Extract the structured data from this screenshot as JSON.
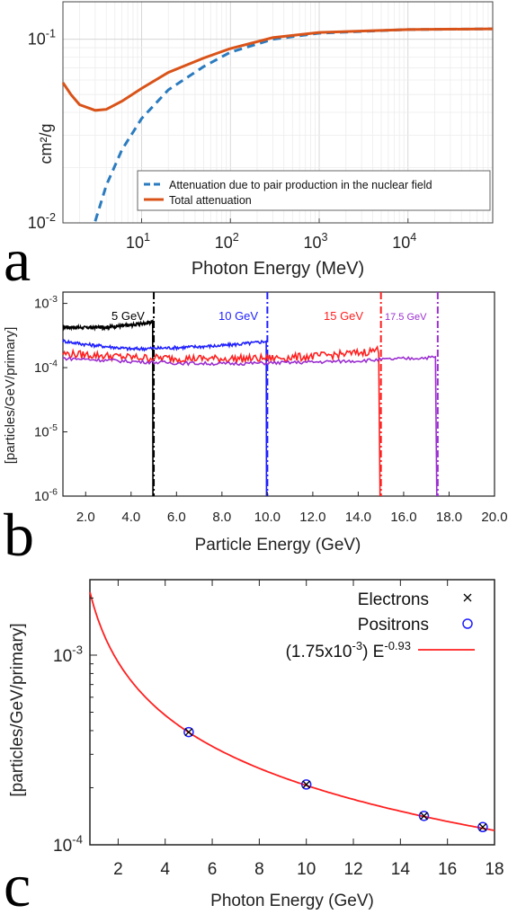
{
  "chart_data": [
    {
      "panel": "a",
      "type": "line",
      "xlabel": "Photon Energy (MeV)",
      "ylabel": "cm²/g",
      "xscale": "log",
      "yscale": "log",
      "xlim": [
        1.3,
        90000
      ],
      "ylim": [
        0.01,
        0.16
      ],
      "xticks": [
        {
          "v": 10,
          "base": "10",
          "exp": "1"
        },
        {
          "v": 100,
          "base": "10",
          "exp": "2"
        },
        {
          "v": 1000,
          "base": "10",
          "exp": "3"
        },
        {
          "v": 10000,
          "base": "10",
          "exp": "4"
        }
      ],
      "yticks": [
        {
          "v": 0.01,
          "base": "10",
          "exp": "-2"
        },
        {
          "v": 0.1,
          "base": "10",
          "exp": "-1"
        }
      ],
      "grid": true,
      "legend_position": "bottom-right",
      "series": [
        {
          "name": "Attenuation due to pair production in the nuclear field",
          "color": "#2b7bbf",
          "style": "dashed",
          "x": [
            3,
            4,
            6,
            10,
            20,
            50,
            100,
            300,
            1000,
            10000,
            90000
          ],
          "y": [
            0.0102,
            0.016,
            0.025,
            0.037,
            0.053,
            0.071,
            0.085,
            0.1,
            0.108,
            0.113,
            0.114
          ]
        },
        {
          "name": "Total attenuation",
          "color": "#d95319",
          "style": "solid",
          "x": [
            1.3,
            1.6,
            2,
            3,
            4,
            6,
            10,
            20,
            50,
            100,
            300,
            1000,
            10000,
            90000
          ],
          "y": [
            0.058,
            0.05,
            0.044,
            0.041,
            0.0415,
            0.046,
            0.054,
            0.066,
            0.079,
            0.089,
            0.102,
            0.109,
            0.113,
            0.114
          ]
        }
      ]
    },
    {
      "panel": "b",
      "type": "line",
      "xlabel": "Particle Energy (GeV)",
      "ylabel": "[particles/GeV/primary]",
      "xscale": "linear",
      "yscale": "log",
      "xlim": [
        1,
        20
      ],
      "ylim": [
        1e-06,
        0.0015
      ],
      "xticks": [
        "2.0",
        "4.0",
        "6.0",
        "8.0",
        "10.0",
        "12.0",
        "14.0",
        "16.0",
        "18.0",
        "20.0"
      ],
      "yticks": [
        {
          "v": 1e-06,
          "base": "10",
          "exp": "-6"
        },
        {
          "v": 1e-05,
          "base": "10",
          "exp": "-5"
        },
        {
          "v": 0.0001,
          "base": "10",
          "exp": "-4"
        },
        {
          "v": 0.001,
          "base": "10",
          "exp": "-3"
        }
      ],
      "series": [
        {
          "name": "5 GeV",
          "color": "#000000",
          "cutoff": 5,
          "x": [
            1,
            2,
            3,
            4,
            4.7,
            4.95
          ],
          "y": [
            0.00043,
            0.00042,
            0.00043,
            0.00046,
            0.0005,
            0.00052
          ]
        },
        {
          "name": "10 GeV",
          "color": "#1f1fff",
          "cutoff": 10,
          "x": [
            1,
            2,
            4,
            6,
            8,
            9.5,
            9.95
          ],
          "y": [
            0.00026,
            0.00023,
            0.000195,
            0.000205,
            0.00022,
            0.000245,
            0.00026
          ]
        },
        {
          "name": "15 GeV",
          "color": "#ff1f1f",
          "cutoff": 15,
          "x": [
            1,
            2,
            4,
            6,
            8,
            10,
            12,
            14,
            14.9
          ],
          "y": [
            0.000165,
            0.00016,
            0.000145,
            0.00014,
            0.000138,
            0.00014,
            0.00015,
            0.00017,
            0.00019
          ]
        },
        {
          "name": "17.5 GeV",
          "color": "#9b2fd0",
          "cutoff": 17.5,
          "x": [
            1,
            2,
            4,
            6,
            8,
            10,
            12,
            14,
            16,
            17.4
          ],
          "y": [
            0.00014,
            0.000135,
            0.000125,
            0.000118,
            0.000115,
            0.000118,
            0.000122,
            0.000128,
            0.000138,
            0.000145
          ]
        }
      ]
    },
    {
      "panel": "c",
      "type": "scatter",
      "xlabel": "Photon Energy (GeV)",
      "ylabel": "[particles/GeV/primary]",
      "xscale": "linear",
      "yscale": "log",
      "xlim": [
        0.8,
        18
      ],
      "ylim": [
        0.0001,
        0.0025
      ],
      "xticks": [
        "2",
        "4",
        "6",
        "8",
        "10",
        "12",
        "14",
        "16",
        "18"
      ],
      "yticks": [
        {
          "v": 0.0001,
          "base": "10",
          "exp": "-4"
        },
        {
          "v": 0.001,
          "base": "10",
          "exp": "-3"
        }
      ],
      "legend_position": "top-right",
      "series": [
        {
          "name": "Electrons",
          "marker": "x",
          "color": "#000000",
          "x": [
            5,
            10,
            15,
            17.5
          ],
          "y": [
            0.000393,
            0.000208,
            0.000142,
            0.000124
          ]
        },
        {
          "name": "Positrons",
          "marker": "o",
          "color": "#1f1fff",
          "x": [
            5,
            10,
            15,
            17.5
          ],
          "y": [
            0.000393,
            0.000208,
            0.000142,
            0.000124
          ]
        },
        {
          "name_prefix": "(1.75x10",
          "name_exp1": "-3",
          "name_mid": ") E",
          "name_exp2": "-0.93",
          "color": "#ff1f1f",
          "fit": {
            "a": 0.00175,
            "b": -0.93
          }
        }
      ]
    }
  ],
  "labels": {
    "a": "a",
    "b": "b",
    "c": "c"
  }
}
